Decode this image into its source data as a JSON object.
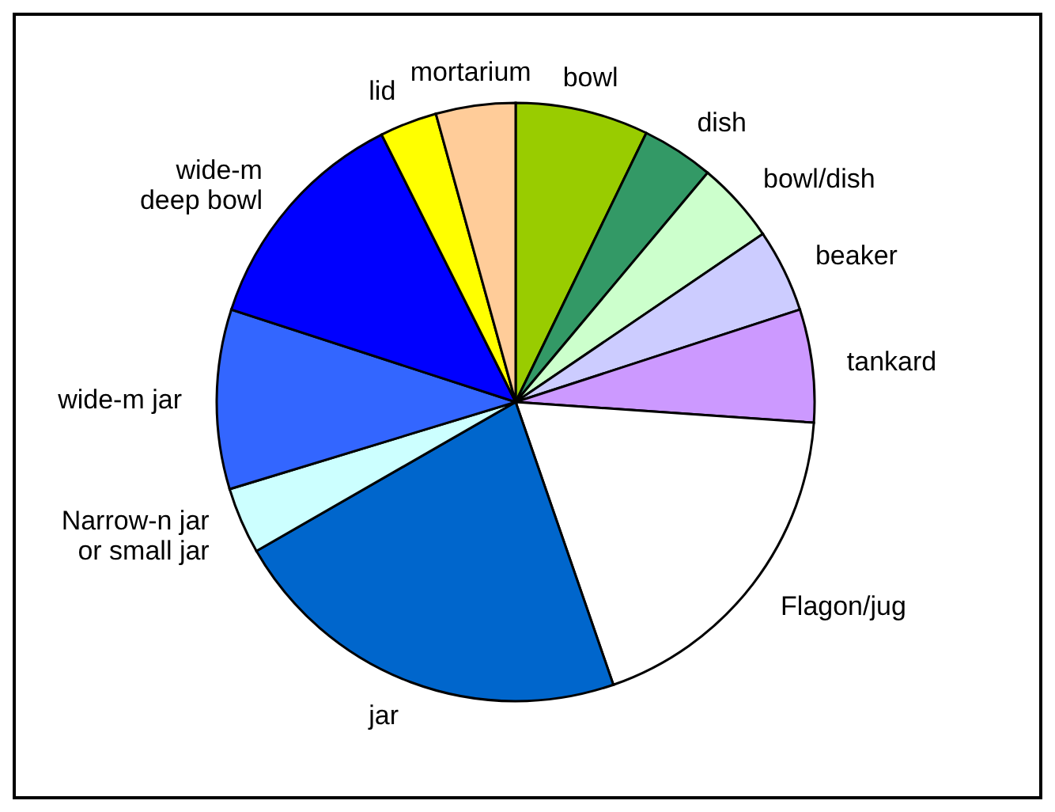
{
  "chart_data": {
    "type": "pie",
    "categories": [
      "bowl",
      "dish",
      "bowl/dish",
      "beaker",
      "tankard",
      "Flagon/jug",
      "jar",
      "Narrow-n jar\nor small jar",
      "wide-m jar",
      "wide-m\ndeep bowl",
      "lid",
      "mortarium"
    ],
    "values": [
      7.2,
      3.9,
      4.4,
      4.5,
      6.1,
      18.6,
      22,
      3.6,
      9.7,
      12.6,
      3.1,
      4.3
    ],
    "colors": [
      "#99cc00",
      "#339966",
      "#ccffcc",
      "#ccccff",
      "#cc99ff",
      "#ffffff",
      "#0066cc",
      "#ccffff",
      "#3366ff",
      "#0000ff",
      "#ffff00",
      "#ffcc99"
    ],
    "legend": false
  }
}
